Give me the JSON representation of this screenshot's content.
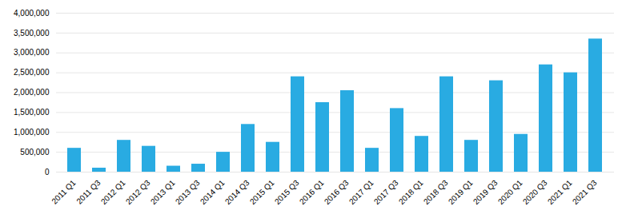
{
  "chart_data": {
    "type": "bar",
    "categories": [
      "2011 Q1",
      "2011 Q3",
      "2012 Q1",
      "2012 Q3",
      "2013 Q1",
      "2013 Q3",
      "2014 Q1",
      "2014 Q3",
      "2015 Q1",
      "2015 Q3",
      "2016 Q1",
      "2016 Q3",
      "2017 Q1",
      "2017 Q3",
      "2018 Q1",
      "2018 Q3",
      "2019 Q1",
      "2019 Q3",
      "2020 Q1",
      "2020 Q3",
      "2021 Q1",
      "2021 Q3"
    ],
    "values": [
      600000,
      100000,
      800000,
      650000,
      150000,
      200000,
      500000,
      1200000,
      750000,
      2400000,
      1750000,
      2050000,
      600000,
      1600000,
      900000,
      2400000,
      800000,
      2300000,
      950000,
      2700000,
      2500000,
      3350000
    ],
    "color": "#29ABE2",
    "ylim": [
      0,
      4000000
    ],
    "yticks": [
      0,
      {
        "value": 500000,
        "label": "500,000"
      },
      {
        "value": 1000000,
        "label": "1,000,000"
      },
      {
        "value": 1500000,
        "label": "1,500,000"
      },
      {
        "value": 2000000,
        "label": "2,000,000"
      },
      {
        "value": 2500000,
        "label": "2,500,000"
      },
      {
        "value": 3000000,
        "label": "3,000,000"
      },
      {
        "value": 3500000,
        "label": "3,500,000"
      },
      {
        "value": 4000000,
        "label": "4,000,000"
      }
    ],
    "grid": true
  }
}
